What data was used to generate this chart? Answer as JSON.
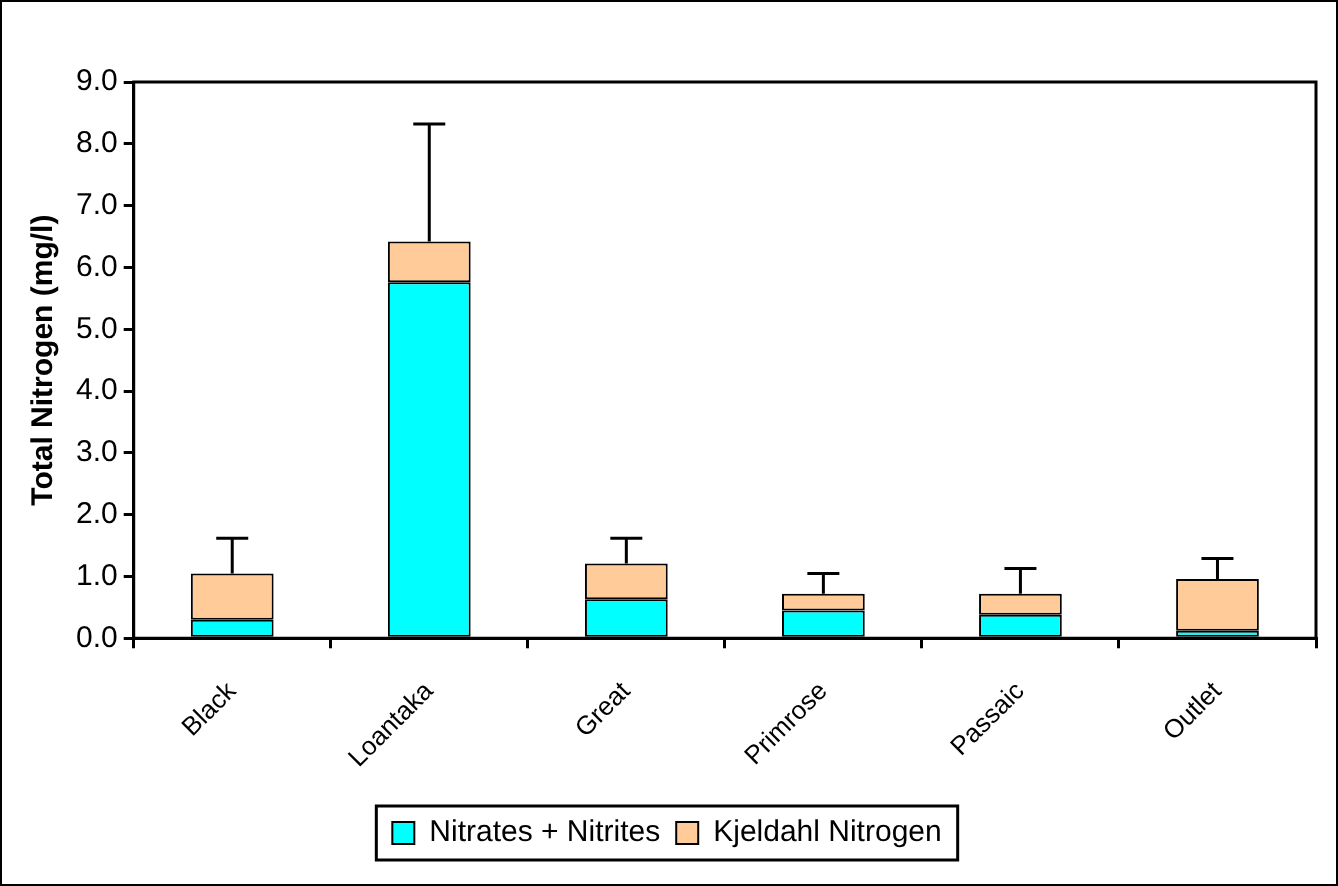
{
  "chart_data": {
    "type": "bar",
    "stacked": true,
    "ylabel": "Total Nitrogen (mg/l)",
    "categories": [
      "Black",
      "Loantaka",
      "Great",
      "Primrose",
      "Passaic",
      "Outlet"
    ],
    "series": [
      {
        "name": "Nitrates + Nitrites",
        "color": "#00ffff",
        "values": [
          0.3,
          5.76,
          0.63,
          0.45,
          0.38,
          0.12
        ]
      },
      {
        "name": "Kjeldahl Nitrogen",
        "color": "#ffcc99",
        "values": [
          0.75,
          0.66,
          0.58,
          0.27,
          0.34,
          0.84
        ],
        "errors": [
          [
            1.05,
            1.62
          ],
          [
            6.42,
            8.32
          ],
          [
            1.21,
            1.62
          ],
          [
            0.72,
            1.05
          ],
          [
            0.72,
            1.13
          ],
          [
            0.96,
            1.29
          ]
        ]
      }
    ],
    "ylim": [
      0,
      9
    ],
    "yticks": [
      {
        "value": 0,
        "label": "0.0"
      },
      {
        "value": 1,
        "label": "1.0"
      },
      {
        "value": 2,
        "label": "2.0"
      },
      {
        "value": 3,
        "label": "3.0"
      },
      {
        "value": 4,
        "label": "4.0"
      },
      {
        "value": 5,
        "label": "5.0"
      },
      {
        "value": 6,
        "label": "6.0"
      },
      {
        "value": 7,
        "label": "7.0"
      },
      {
        "value": 8,
        "label": "8.0"
      },
      {
        "value": 9,
        "label": "9.0"
      }
    ],
    "grid": false,
    "legend": "bottom"
  }
}
